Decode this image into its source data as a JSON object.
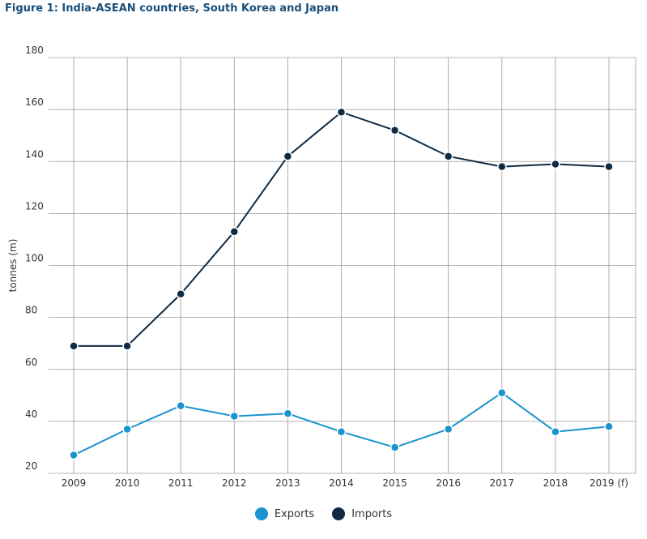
{
  "figure_title": "Figure 1: India-ASEAN countries, South Korea and Japan",
  "chart_data": {
    "type": "line",
    "title": "Figure 1: India-ASEAN countries, South Korea and Japan",
    "xlabel": "",
    "ylabel": "tonnes (m)",
    "categories": [
      "2009",
      "2010",
      "2011",
      "2012",
      "2013",
      "2014",
      "2015",
      "2016",
      "2017",
      "2018",
      "2019 (f)"
    ],
    "ylim": [
      20,
      180
    ],
    "yticks": [
      20,
      40,
      60,
      80,
      100,
      120,
      140,
      160,
      180
    ],
    "grid": true,
    "legend": "bottom-center",
    "series": [
      {
        "name": "Exports",
        "color": "#1a93d0",
        "values": [
          27,
          37,
          46,
          42,
          43,
          36,
          30,
          37,
          51,
          36,
          38
        ]
      },
      {
        "name": "Imports",
        "color": "#0f2a44",
        "values": [
          69,
          69,
          89,
          113,
          142,
          159,
          152,
          142,
          138,
          139,
          138
        ]
      }
    ]
  }
}
